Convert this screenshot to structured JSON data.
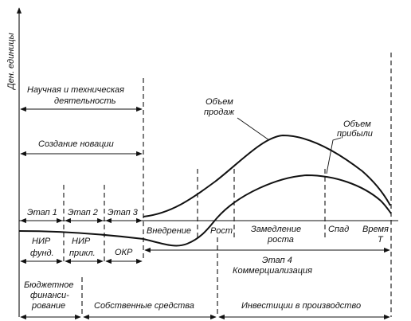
{
  "y_axis_label": "Ден. единицы",
  "header": {
    "research_line1": "Научная и техническая",
    "research_line2": "деятельность",
    "creation": "Создание новации"
  },
  "curves": {
    "sales_line1": "Объем",
    "sales_line2": "продаж",
    "profit_line1": "Объем",
    "profit_line2": "прибыли"
  },
  "stages": {
    "stage1": "Этап 1",
    "stage2": "Этап 2",
    "stage3": "Этап 3",
    "nir_fund_line1": "НИР",
    "nir_fund_line2": "фунд.",
    "nir_appl_line1": "НИР",
    "nir_appl_line2": "прикл.",
    "okr": "ОКР",
    "introduction": "Внедрение",
    "growth": "Рост",
    "slowdown_line1": "Замедление",
    "slowdown_line2": "роста",
    "decline": "Спад",
    "time_line1": "Время",
    "time_line2": "T",
    "stage4_line1": "Этап 4",
    "stage4_line2": "Коммерциализация"
  },
  "financing": {
    "budget_line1": "Бюджетное",
    "budget_line2": "финанси-",
    "budget_line3": "рование",
    "own": "Собственные средства",
    "investment": "Инвестиции в производство"
  }
}
